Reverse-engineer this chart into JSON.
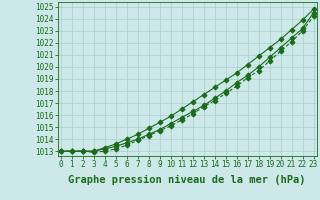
{
  "title": "Graphe pression niveau de la mer (hPa)",
  "xlim": [
    -0.3,
    23.3
  ],
  "ylim": [
    1012.6,
    1025.4
  ],
  "yticks": [
    1013,
    1014,
    1015,
    1016,
    1017,
    1018,
    1019,
    1020,
    1021,
    1022,
    1023,
    1024,
    1025
  ],
  "xticks": [
    0,
    1,
    2,
    3,
    4,
    5,
    6,
    7,
    8,
    9,
    10,
    11,
    12,
    13,
    14,
    15,
    16,
    17,
    18,
    19,
    20,
    21,
    22,
    23
  ],
  "bg_color": "#cce8e8",
  "grid_color": "#aacccc",
  "line_color": "#1a6b1a",
  "line1": [
    1013.0,
    1013.0,
    1013.0,
    1013.0,
    1013.2,
    1013.4,
    1013.7,
    1014.0,
    1014.4,
    1014.8,
    1015.3,
    1015.8,
    1016.3,
    1016.8,
    1017.4,
    1018.0,
    1018.7,
    1019.3,
    1020.0,
    1020.8,
    1021.6,
    1022.4,
    1023.2,
    1024.5
  ],
  "line2": [
    1013.0,
    1013.0,
    1013.0,
    1012.9,
    1013.0,
    1013.2,
    1013.5,
    1013.9,
    1014.3,
    1014.7,
    1015.1,
    1015.6,
    1016.1,
    1016.7,
    1017.2,
    1017.8,
    1018.4,
    1019.1,
    1019.7,
    1020.5,
    1021.3,
    1022.1,
    1023.0,
    1024.2
  ],
  "line3": [
    1013.0,
    1013.0,
    1013.0,
    1013.0,
    1013.3,
    1013.6,
    1014.0,
    1014.4,
    1014.9,
    1015.4,
    1015.9,
    1016.5,
    1017.1,
    1017.7,
    1018.3,
    1018.9,
    1019.5,
    1020.2,
    1020.9,
    1021.6,
    1022.3,
    1023.1,
    1023.9,
    1024.8
  ],
  "title_fontsize": 7.5,
  "tick_fontsize": 5.5
}
